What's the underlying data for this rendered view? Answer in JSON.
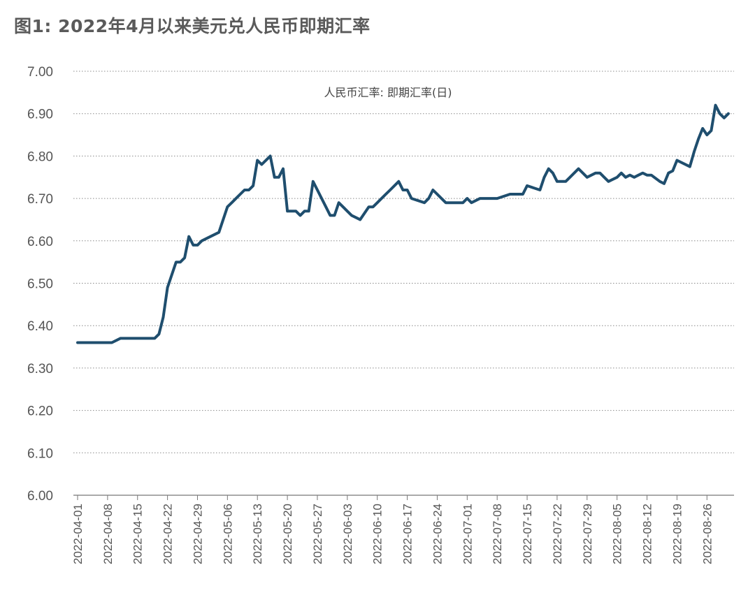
{
  "title": "图1: 2022年4月以来美元兑人民币即期汇率",
  "chart_data": {
    "type": "line",
    "title": "图1: 2022年4月以来美元兑人民币即期汇率",
    "xlabel": "",
    "ylabel": "",
    "ylim": [
      6.0,
      7.0
    ],
    "yticks": [
      "7.00",
      "6.90",
      "6.80",
      "6.70",
      "6.60",
      "6.50",
      "6.40",
      "6.30",
      "6.20",
      "6.10",
      "6.00"
    ],
    "xticks": [
      "2022-04-01",
      "2022-04-08",
      "2022-04-15",
      "2022-04-22",
      "2022-04-29",
      "2022-05-06",
      "2022-05-13",
      "2022-05-20",
      "2022-05-27",
      "2022-06-03",
      "2022-06-10",
      "2022-06-17",
      "2022-06-24",
      "2022-07-01",
      "2022-07-08",
      "2022-07-15",
      "2022-07-22",
      "2022-07-29",
      "2022-08-05",
      "2022-08-12",
      "2022-08-19",
      "2022-08-26"
    ],
    "grid": "horizontal dotted",
    "line_color": "#1f4e6e",
    "series": [
      {
        "name": "人民币汇率: 即期汇率(日)",
        "x": [
          "2022-04-01",
          "2022-04-03",
          "2022-04-05",
          "2022-04-07",
          "2022-04-09",
          "2022-04-11",
          "2022-04-13",
          "2022-04-15",
          "2022-04-17",
          "2022-04-19",
          "2022-04-20",
          "2022-04-21",
          "2022-04-22",
          "2022-04-24",
          "2022-04-25",
          "2022-04-26",
          "2022-04-27",
          "2022-04-28",
          "2022-04-29",
          "2022-04-30",
          "2022-05-02",
          "2022-05-04",
          "2022-05-06",
          "2022-05-07",
          "2022-05-08",
          "2022-05-09",
          "2022-05-10",
          "2022-05-11",
          "2022-05-12",
          "2022-05-13",
          "2022-05-14",
          "2022-05-16",
          "2022-05-17",
          "2022-05-18",
          "2022-05-19",
          "2022-05-20",
          "2022-05-21",
          "2022-05-22",
          "2022-05-23",
          "2022-05-24",
          "2022-05-25",
          "2022-05-26",
          "2022-05-27",
          "2022-05-28",
          "2022-05-29",
          "2022-05-30",
          "2022-05-31",
          "2022-06-01",
          "2022-06-02",
          "2022-06-03",
          "2022-06-04",
          "2022-06-06",
          "2022-06-08",
          "2022-06-09",
          "2022-06-10",
          "2022-06-11",
          "2022-06-12",
          "2022-06-13",
          "2022-06-15",
          "2022-06-16",
          "2022-06-17",
          "2022-06-18",
          "2022-06-21",
          "2022-06-22",
          "2022-06-23",
          "2022-06-24",
          "2022-06-26",
          "2022-06-27",
          "2022-06-28",
          "2022-06-29",
          "2022-06-30",
          "2022-07-01",
          "2022-07-02",
          "2022-07-04",
          "2022-07-06",
          "2022-07-07",
          "2022-07-08",
          "2022-07-11",
          "2022-07-12",
          "2022-07-13",
          "2022-07-14",
          "2022-07-15",
          "2022-07-18",
          "2022-07-19",
          "2022-07-20",
          "2022-07-21",
          "2022-07-22",
          "2022-07-24",
          "2022-07-25",
          "2022-07-26",
          "2022-07-27",
          "2022-07-28",
          "2022-07-29",
          "2022-07-31",
          "2022-08-01",
          "2022-08-02",
          "2022-08-03",
          "2022-08-04",
          "2022-08-05",
          "2022-08-06",
          "2022-08-07",
          "2022-08-08",
          "2022-08-09",
          "2022-08-10",
          "2022-08-11",
          "2022-08-12",
          "2022-08-13",
          "2022-08-15",
          "2022-08-16",
          "2022-08-17",
          "2022-08-18",
          "2022-08-19",
          "2022-08-22",
          "2022-08-23",
          "2022-08-24",
          "2022-08-25",
          "2022-08-26",
          "2022-08-27",
          "2022-08-28",
          "2022-08-29",
          "2022-08-30",
          "2022-08-31"
        ],
        "values": [
          6.36,
          6.36,
          6.36,
          6.36,
          6.36,
          6.37,
          6.37,
          6.37,
          6.37,
          6.37,
          6.38,
          6.42,
          6.49,
          6.55,
          6.55,
          6.56,
          6.61,
          6.59,
          6.59,
          6.6,
          6.61,
          6.62,
          6.68,
          6.69,
          6.7,
          6.71,
          6.72,
          6.72,
          6.73,
          6.79,
          6.78,
          6.8,
          6.75,
          6.75,
          6.77,
          6.67,
          6.67,
          6.67,
          6.66,
          6.67,
          6.67,
          6.74,
          6.72,
          6.7,
          6.68,
          6.66,
          6.66,
          6.69,
          6.68,
          6.67,
          6.66,
          6.65,
          6.68,
          6.68,
          6.69,
          6.7,
          6.71,
          6.72,
          6.74,
          6.72,
          6.72,
          6.7,
          6.69,
          6.7,
          6.72,
          6.71,
          6.69,
          6.69,
          6.69,
          6.69,
          6.69,
          6.7,
          6.69,
          6.7,
          6.7,
          6.7,
          6.7,
          6.71,
          6.71,
          6.71,
          6.71,
          6.73,
          6.72,
          6.75,
          6.77,
          6.76,
          6.74,
          6.74,
          6.75,
          6.76,
          6.77,
          6.76,
          6.75,
          6.76,
          6.76,
          6.75,
          6.74,
          6.745,
          6.75,
          6.76,
          6.75,
          6.755,
          6.75,
          6.755,
          6.76,
          6.755,
          6.755,
          6.74,
          6.735,
          6.76,
          6.765,
          6.79,
          6.775,
          6.81,
          6.84,
          6.865,
          6.85,
          6.86,
          6.92,
          6.9,
          6.89,
          6.9
        ]
      }
    ]
  }
}
